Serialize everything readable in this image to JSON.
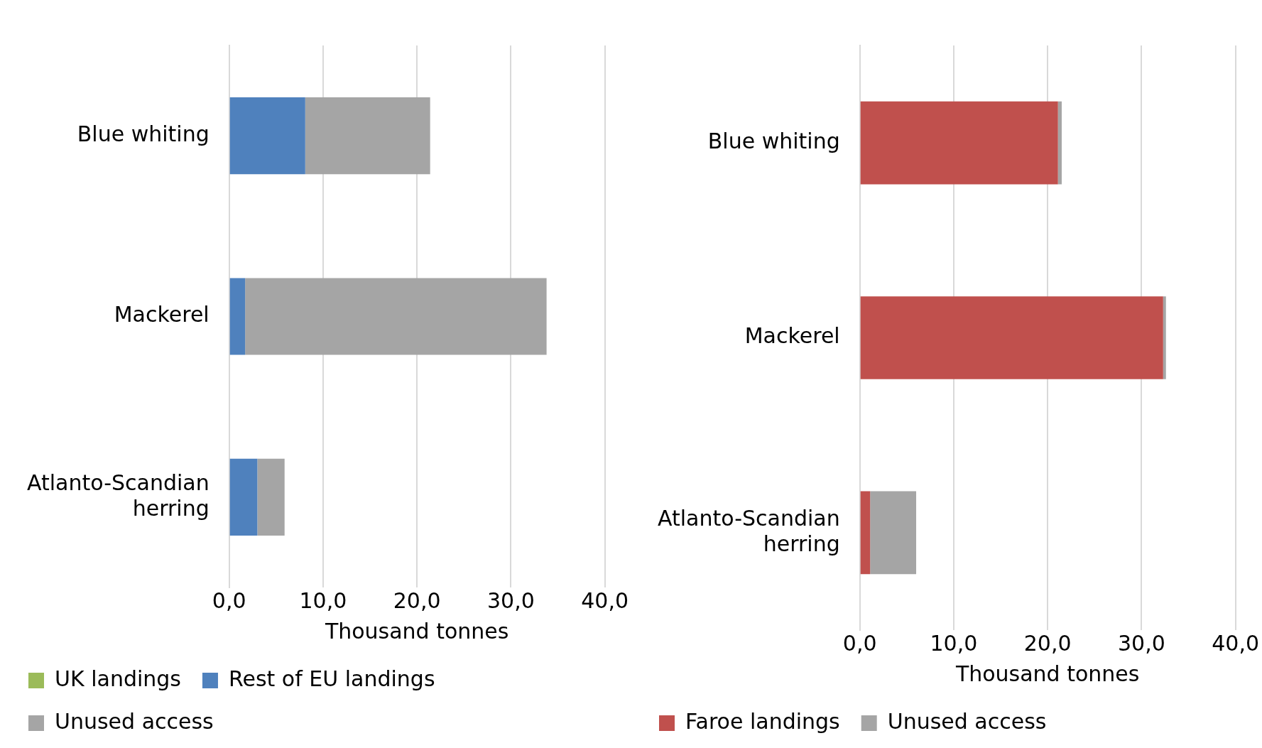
{
  "chart_data": [
    {
      "type": "bar",
      "orientation": "horizontal",
      "stacked": true,
      "categories": [
        "Blue whiting",
        "Mackerel",
        "Atlanto-Scandian herring"
      ],
      "series": [
        {
          "name": "UK landings",
          "color": "#9bbb59",
          "values": [
            0,
            0,
            0
          ]
        },
        {
          "name": "Rest of EU landings",
          "color": "#4f81bd",
          "values": [
            8.1,
            1.7,
            3.0
          ]
        },
        {
          "name": "Unused access",
          "color": "#a5a5a5",
          "values": [
            13.3,
            32.1,
            2.9
          ]
        }
      ],
      "xlabel": "Thousand tonnes",
      "xlim": [
        0,
        40
      ],
      "xticks": [
        {
          "value": 0,
          "label": "0,0"
        },
        {
          "value": 10,
          "label": "10,0"
        },
        {
          "value": 20,
          "label": "20,0"
        },
        {
          "value": 30,
          "label": "30,0"
        },
        {
          "value": 40,
          "label": "40,0"
        }
      ],
      "grid": "x",
      "legend": "bottom"
    },
    {
      "type": "bar",
      "orientation": "horizontal",
      "stacked": true,
      "categories": [
        "Blue whiting",
        "Mackerel",
        "Atlanto-Scandian herring"
      ],
      "series": [
        {
          "name": "Faroe landings",
          "color": "#c0504d",
          "values": [
            21.1,
            32.3,
            1.1
          ]
        },
        {
          "name": "Unused access",
          "color": "#a5a5a5",
          "values": [
            0.4,
            0.3,
            4.9
          ]
        }
      ],
      "xlabel": "Thousand tonnes",
      "xlim": [
        0,
        40
      ],
      "xticks": [
        {
          "value": 0,
          "label": "0,0"
        },
        {
          "value": 10,
          "label": "10,0"
        },
        {
          "value": 20,
          "label": "20,0"
        },
        {
          "value": 30,
          "label": "30,0"
        },
        {
          "value": 40,
          "label": "40,0"
        }
      ],
      "grid": "x",
      "legend": "bottom"
    }
  ]
}
